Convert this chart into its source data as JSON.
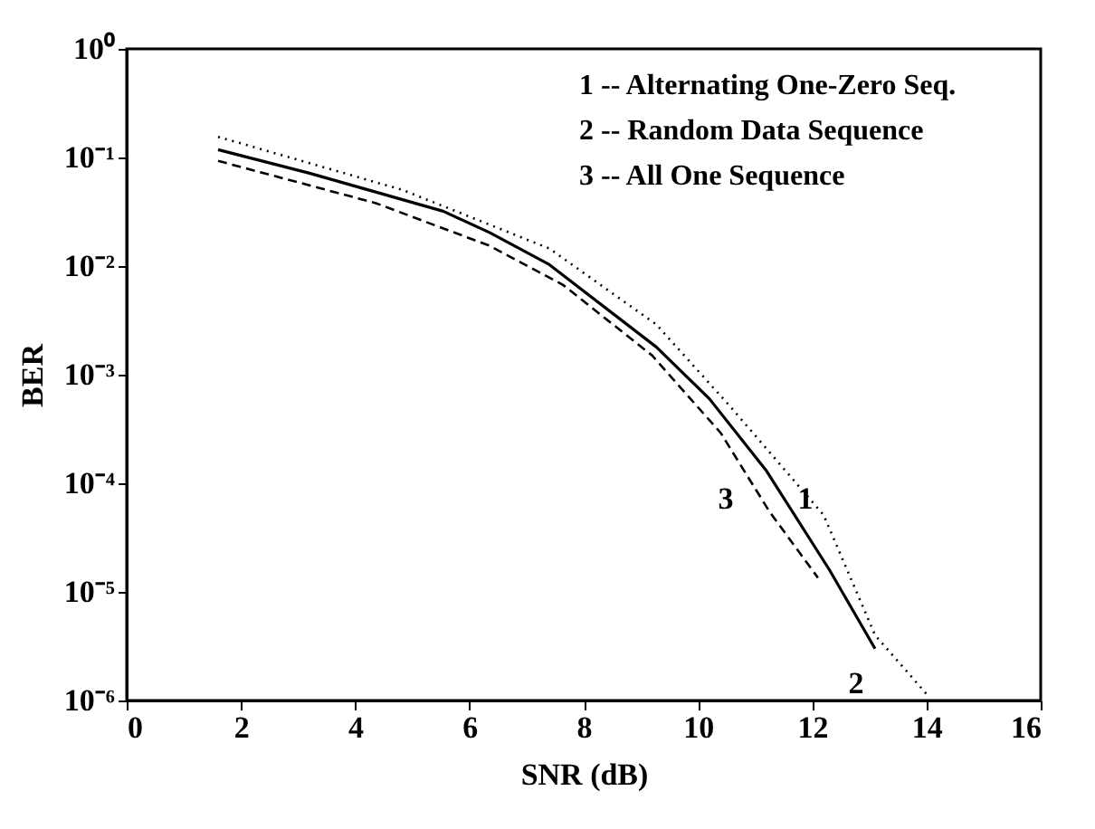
{
  "chart_data": {
    "type": "line",
    "xlabel": "SNR (dB)",
    "ylabel": "BER",
    "log": "y",
    "grid": false,
    "xlim": [
      0,
      16
    ],
    "xticks": [
      0,
      2,
      4,
      6,
      8,
      10,
      12,
      14,
      16
    ],
    "ylim": [
      1e-06,
      1
    ],
    "yticks": [
      {
        "value": 1e-06,
        "label": "10⁻⁶"
      },
      {
        "value": 1e-05,
        "label": "10⁻⁵"
      },
      {
        "value": 0.0001,
        "label": "10⁻⁴"
      },
      {
        "value": 0.001,
        "label": "10⁻³"
      },
      {
        "value": 0.01,
        "label": "10⁻²"
      },
      {
        "value": 0.1,
        "label": "10⁻¹"
      },
      {
        "value": 1,
        "label": "10⁰"
      }
    ],
    "series": [
      {
        "color": "#000000",
        "line_style": "dotted",
        "x": [
          1.6,
          4.84,
          7.4,
          9.27,
          10.55,
          12.2,
          13.1,
          14.0
        ],
        "values": [
          0.155,
          0.05,
          0.0145,
          0.0029,
          0.00052,
          5.1e-05,
          4e-06,
          1.15e-06
        ]
      },
      {
        "color": "#000000",
        "line_style": "solid",
        "x": [
          1.6,
          3.2,
          5.54,
          6.35,
          7.4,
          9.27,
          10.2,
          11.2,
          12.3,
          13.1
        ],
        "values": [
          0.118,
          0.0716,
          0.032,
          0.0204,
          0.0103,
          0.0018,
          0.0006,
          0.00013,
          1.6e-05,
          3e-06
        ]
      },
      {
        "color": "#000000",
        "line_style": "dashed",
        "x": [
          1.6,
          4.36,
          6.35,
          7.64,
          9.2,
          10.4,
          11.25,
          12.1
        ],
        "values": [
          0.093,
          0.038,
          0.0154,
          0.0067,
          0.0015,
          0.00029,
          5.5e-05,
          1.35e-05
        ]
      }
    ],
    "annotations": [
      "1 -- Alternating One-Zero Seq.",
      "2 -- Random Data Sequence",
      "3 -- All One Sequence",
      "1",
      "2",
      "3"
    ]
  }
}
